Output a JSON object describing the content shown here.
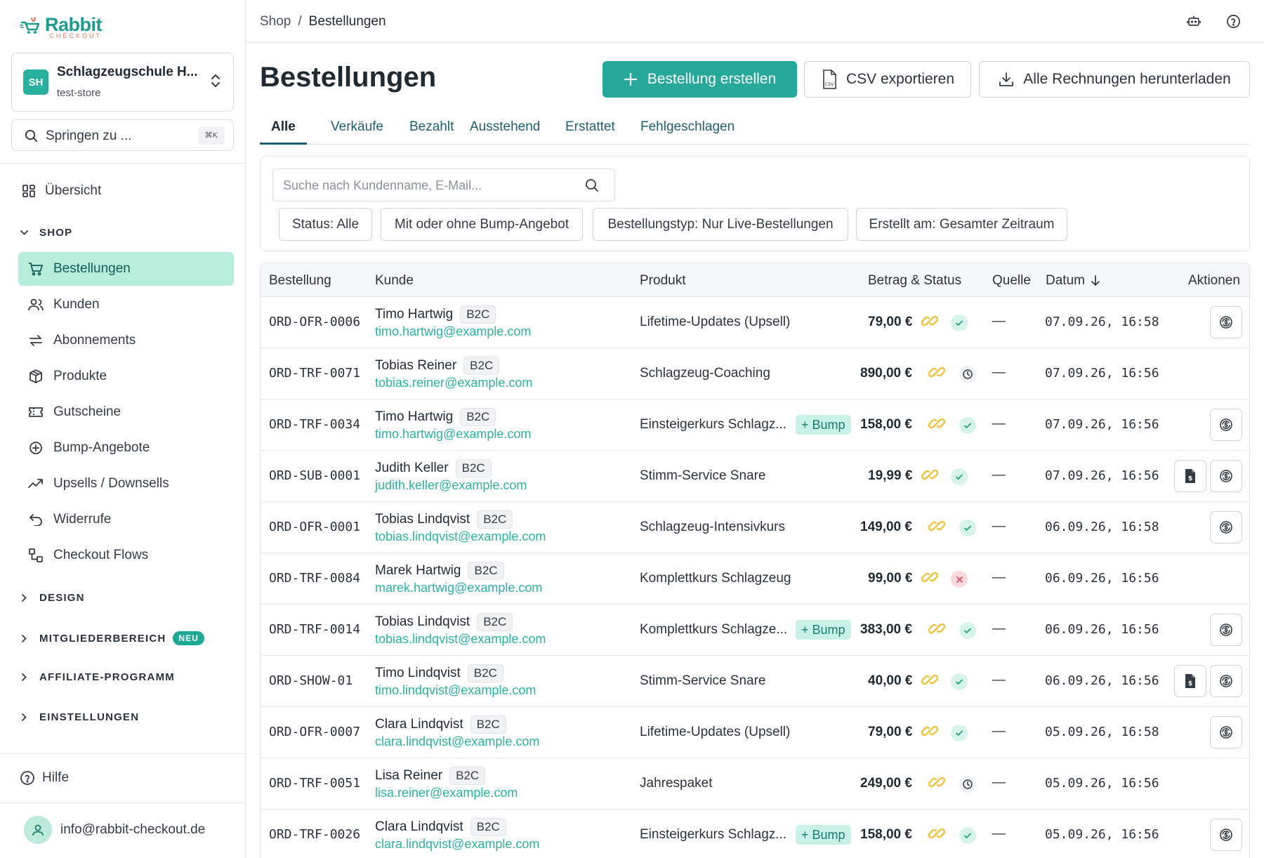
{
  "brand": {
    "name": "Rabbit",
    "sub": "CHECKOUT"
  },
  "store": {
    "avatar": "SH",
    "name": "Schlagzeugschule H...",
    "slug": "test-store"
  },
  "jump": {
    "label": "Springen zu ...",
    "shortcut": "⌘K"
  },
  "nav": {
    "overview": "Übersicht",
    "shop_section": "SHOP",
    "items": [
      "Bestellungen",
      "Kunden",
      "Abonnements",
      "Produkte",
      "Gutscheine",
      "Bump-Angebote",
      "Upsells / Downsells",
      "Widerrufe",
      "Checkout Flows"
    ],
    "sections": [
      "DESIGN",
      "MITGLIEDERBEREICH",
      "AFFILIATE-PROGRAMM",
      "EINSTELLUNGEN"
    ],
    "new_badge": "NEU",
    "help": "Hilfe",
    "user_email": "info@rabbit-checkout.de"
  },
  "breadcrumb": {
    "root": "Shop",
    "separator": "/",
    "current": "Bestellungen"
  },
  "page": {
    "title": "Bestellungen",
    "create_button": "Bestellung erstellen",
    "csv_button": "CSV exportieren",
    "invoices_button": "Alle Rechnungen herunterladen"
  },
  "tabs": [
    "Alle",
    "Verkäufe",
    "Bezahlt",
    "Ausstehend",
    "Erstattet",
    "Fehlgeschlagen"
  ],
  "filters": {
    "search_placeholder": "Suche nach Kundenname, E-Mail...",
    "chips": [
      "Status: Alle",
      "Mit oder ohne Bump-Angebot",
      "Bestellungstyp: Nur Live-Bestellungen",
      "Erstellt am: Gesamter Zeitraum"
    ]
  },
  "table": {
    "columns": [
      "Bestellung",
      "Kunde",
      "Produkt",
      "Betrag & Status",
      "Quelle",
      "Datum",
      "Aktionen"
    ],
    "rows": [
      {
        "order": "ORD-OFR-0006",
        "name": "Timo Hartwig",
        "type": "B2C",
        "email": "timo.hartwig@example.com",
        "product": "Lifetime-Updates (Upsell)",
        "bump": "",
        "amount": "79,00 €",
        "status": "paid",
        "source": "—",
        "date": "07.09.26, 16:58",
        "invoice": false,
        "refund": true
      },
      {
        "order": "ORD-TRF-0071",
        "name": "Tobias Reiner",
        "type": "B2C",
        "email": "tobias.reiner@example.com",
        "product": "Schlagzeug-Coaching",
        "bump": "",
        "amount": "890,00 €",
        "status": "pending",
        "source": "—",
        "date": "07.09.26, 16:56",
        "invoice": false,
        "refund": false
      },
      {
        "order": "ORD-TRF-0034",
        "name": "Timo Hartwig",
        "type": "B2C",
        "email": "timo.hartwig@example.com",
        "product": "Einsteigerkurs Schlagz...",
        "bump": "+ Bump",
        "amount": "158,00 €",
        "status": "paid",
        "source": "—",
        "date": "07.09.26, 16:56",
        "invoice": false,
        "refund": true
      },
      {
        "order": "ORD-SUB-0001",
        "name": "Judith Keller",
        "type": "B2C",
        "email": "judith.keller@example.com",
        "product": "Stimm-Service Snare",
        "bump": "",
        "amount": "19,99 €",
        "status": "paid",
        "source": "—",
        "date": "07.09.26, 16:56",
        "invoice": true,
        "refund": true
      },
      {
        "order": "ORD-OFR-0001",
        "name": "Tobias Lindqvist",
        "type": "B2C",
        "email": "tobias.lindqvist@example.com",
        "product": "Schlagzeug-Intensivkurs",
        "bump": "",
        "amount": "149,00 €",
        "status": "paid",
        "source": "—",
        "date": "06.09.26, 16:58",
        "invoice": false,
        "refund": true
      },
      {
        "order": "ORD-TRF-0084",
        "name": "Marek Hartwig",
        "type": "B2C",
        "email": "marek.hartwig@example.com",
        "product": "Komplettkurs Schlagzeug",
        "bump": "",
        "amount": "99,00 €",
        "status": "failed",
        "source": "—",
        "date": "06.09.26, 16:56",
        "invoice": false,
        "refund": false
      },
      {
        "order": "ORD-TRF-0014",
        "name": "Tobias Lindqvist",
        "type": "B2C",
        "email": "tobias.lindqvist@example.com",
        "product": "Komplettkurs Schlagze...",
        "bump": "+ Bump",
        "amount": "383,00 €",
        "status": "paid",
        "source": "—",
        "date": "06.09.26, 16:56",
        "invoice": false,
        "refund": true
      },
      {
        "order": "ORD-SHOW-01",
        "name": "Timo Lindqvist",
        "type": "B2C",
        "email": "timo.lindqvist@example.com",
        "product": "Stimm-Service Snare",
        "bump": "",
        "amount": "40,00 €",
        "status": "paid",
        "source": "—",
        "date": "06.09.26, 16:56",
        "invoice": true,
        "refund": true
      },
      {
        "order": "ORD-OFR-0007",
        "name": "Clara Lindqvist",
        "type": "B2C",
        "email": "clara.lindqvist@example.com",
        "product": "Lifetime-Updates (Upsell)",
        "bump": "",
        "amount": "79,00 €",
        "status": "paid",
        "source": "—",
        "date": "05.09.26, 16:58",
        "invoice": false,
        "refund": true
      },
      {
        "order": "ORD-TRF-0051",
        "name": "Lisa Reiner",
        "type": "B2C",
        "email": "lisa.reiner@example.com",
        "product": "Jahrespaket",
        "bump": "",
        "amount": "249,00 €",
        "status": "pending",
        "source": "—",
        "date": "05.09.26, 16:56",
        "invoice": false,
        "refund": false
      },
      {
        "order": "ORD-TRF-0026",
        "name": "Clara Lindqvist",
        "type": "B2C",
        "email": "clara.lindqvist@example.com",
        "product": "Einsteigerkurs Schlagz...",
        "bump": "+ Bump",
        "amount": "158,00 €",
        "status": "paid",
        "source": "—",
        "date": "05.09.26, 16:56",
        "invoice": false,
        "refund": true
      }
    ]
  },
  "colors": {
    "accent": "#26a99a",
    "email": "#2bb3a2",
    "active_nav": "#b8eddc",
    "paid": "#1ea37a",
    "failed": "#e0525f",
    "link_icon": "#f2c23a"
  }
}
